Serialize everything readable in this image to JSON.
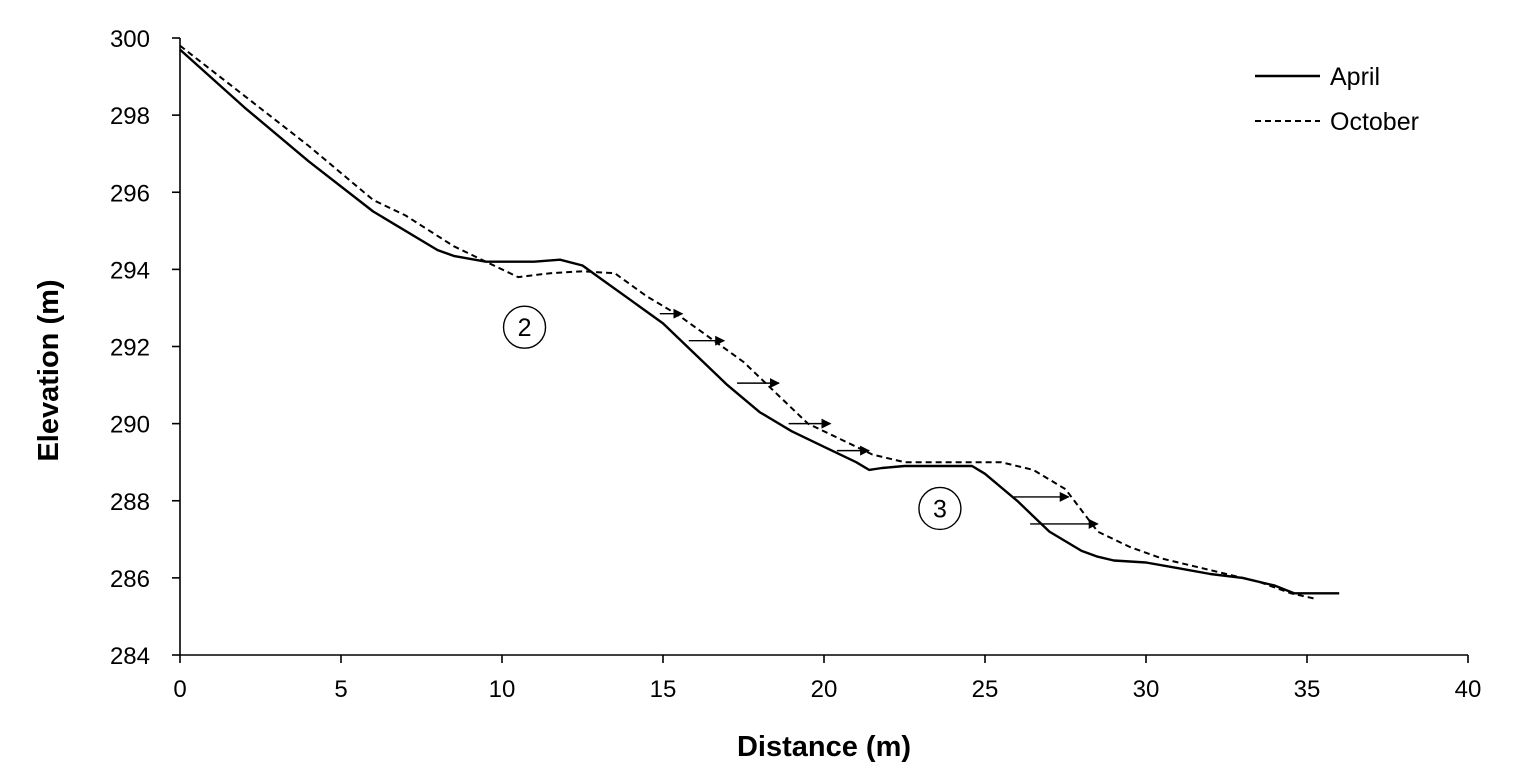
{
  "chart_data": {
    "type": "line",
    "xlabel": "Distance (m)",
    "ylabel": "Elevation (m)",
    "xlim": [
      0,
      40
    ],
    "ylim": [
      284,
      300
    ],
    "xticks": [
      0,
      5,
      10,
      15,
      20,
      25,
      30,
      35,
      40
    ],
    "yticks": [
      284,
      286,
      288,
      290,
      292,
      294,
      296,
      298,
      300
    ],
    "grid": false,
    "legend_position": "top-right",
    "series": [
      {
        "name": "April",
        "style": "solid",
        "color": "#000000",
        "x": [
          0,
          2,
          4,
          6,
          8,
          8.5,
          9.5,
          10,
          11,
          11.8,
          12.5,
          13,
          14,
          15,
          16,
          17,
          18,
          19,
          20,
          21,
          21.4,
          21.8,
          22.5,
          24,
          24.6,
          25,
          26,
          26.5,
          27,
          28,
          28.5,
          29,
          30,
          31,
          32,
          33,
          34,
          34.6,
          35,
          36
        ],
        "y": [
          299.7,
          298.2,
          296.8,
          295.5,
          294.5,
          294.35,
          294.2,
          294.2,
          294.2,
          294.25,
          294.1,
          293.8,
          293.2,
          292.6,
          291.8,
          291.0,
          290.3,
          289.8,
          289.4,
          289.0,
          288.8,
          288.85,
          288.9,
          288.9,
          288.9,
          288.7,
          288.0,
          287.6,
          287.2,
          286.7,
          286.55,
          286.45,
          286.4,
          286.25,
          286.1,
          286.0,
          285.8,
          285.6,
          285.6,
          285.6
        ]
      },
      {
        "name": "October",
        "style": "dashed",
        "color": "#000000",
        "x": [
          0,
          2,
          4,
          6,
          7,
          8.5,
          9.5,
          10.5,
          11.5,
          12.5,
          13.5,
          14.5,
          15.5,
          16.5,
          17.5,
          18.5,
          19.5,
          20.5,
          21.5,
          22.5,
          23.5,
          24.5,
          25.5,
          26.5,
          27.5,
          28.5,
          29.5,
          30.5,
          31.5,
          32.5,
          33.5,
          34.5,
          35.3
        ],
        "y": [
          299.8,
          298.5,
          297.2,
          295.8,
          295.4,
          294.6,
          294.2,
          293.8,
          293.9,
          293.95,
          293.9,
          293.3,
          292.8,
          292.2,
          291.6,
          290.8,
          290.0,
          289.6,
          289.2,
          289.0,
          289.0,
          289.0,
          289.0,
          288.8,
          288.3,
          287.2,
          286.8,
          286.5,
          286.3,
          286.1,
          285.9,
          285.6,
          285.45
        ]
      }
    ],
    "annotations": [
      {
        "label": "2",
        "x": 10.7,
        "y": 292.5
      },
      {
        "label": "3",
        "x": 23.6,
        "y": 287.8
      }
    ],
    "arrows": [
      {
        "x0": 14.9,
        "x1": 15.6,
        "y": 292.85
      },
      {
        "x0": 15.8,
        "x1": 16.9,
        "y": 292.15
      },
      {
        "x0": 17.3,
        "x1": 18.6,
        "y": 291.05
      },
      {
        "x0": 18.9,
        "x1": 20.2,
        "y": 290.0
      },
      {
        "x0": 20.4,
        "x1": 21.4,
        "y": 289.3
      },
      {
        "x0": 25.9,
        "x1": 27.6,
        "y": 288.1
      },
      {
        "x0": 26.4,
        "x1": 28.5,
        "y": 287.4
      }
    ]
  }
}
